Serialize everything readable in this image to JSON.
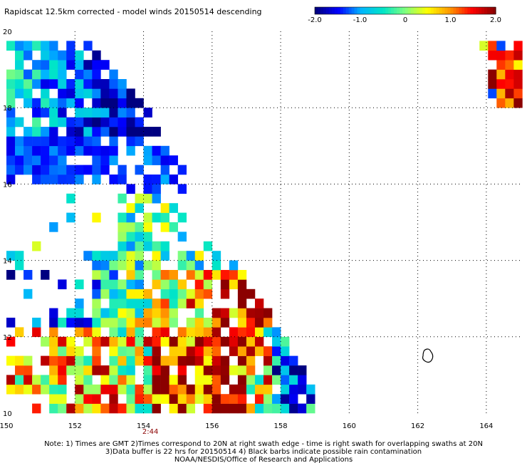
{
  "chart_data": {
    "type": "heatmap",
    "title": "Rapidscat 12.5km corrected - model winds 20150514 descending",
    "xlabel": "",
    "ylabel": "",
    "xlim": [
      150,
      165
    ],
    "ylim": [
      10,
      20
    ],
    "x_ticks": [
      "150",
      "152",
      "154",
      "156",
      "158",
      "160",
      "162",
      "164"
    ],
    "y_ticks": [
      "20",
      "18",
      "16",
      "14",
      "12",
      "10"
    ],
    "grid": true,
    "colorbar": {
      "range": [
        -2.0,
        2.0
      ],
      "tick_labels": [
        "-2.0",
        "-1.0",
        "0",
        "1.0",
        "2.0"
      ],
      "colors": [
        "#000080",
        "#0000ff",
        "#00b4ff",
        "#00e5c8",
        "#7fff7f",
        "#ffff00",
        "#ff9900",
        "#ff0000",
        "#8b0000"
      ]
    },
    "swath_time": {
      "label": "2:44",
      "lon": 154.2
    },
    "rain_contour": {
      "lon": 162.3,
      "lat": 11.5
    },
    "swath_regions": [
      {
        "name": "west",
        "lon_min": 150,
        "lat_max": 19.8,
        "right_edge": [
          [
            19.8,
            152.2
          ],
          [
            19.0,
            153.1
          ],
          [
            18.0,
            154.0
          ],
          [
            17.0,
            154.6
          ],
          [
            16.0,
            155.4
          ],
          [
            14.5,
            156.2
          ],
          [
            13.0,
            157.3
          ],
          [
            12.0,
            158.0
          ],
          [
            11.0,
            158.6
          ],
          [
            10.0,
            159.2
          ]
        ]
      },
      {
        "name": "northeast",
        "lat_min": 18.0,
        "corner": [
          165,
          20
        ],
        "left_edge": [
          [
            19.8,
            164.0
          ],
          [
            18.8,
            164.8
          ],
          [
            18.0,
            165.0
          ]
        ]
      }
    ],
    "field_description": "wind speed difference (m/s) scaled -2.0 to 2.0"
  },
  "notes": [
    "Note: 1) Times are GMT 2)Times correspond to 20N at right swath edge - time is right swath for overlapping swaths at 20N",
    "3)Data buffer is 22 hrs for 20150514 4) Black barbs indicate possible rain contamination",
    "NOAA/NESDIS/Office of Research and Applications"
  ]
}
